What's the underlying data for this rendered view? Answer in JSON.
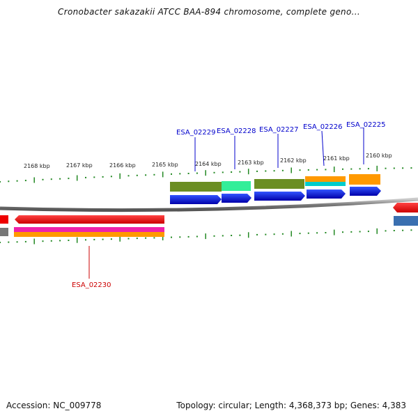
{
  "title": "Cronobacter sakazakii ATCC BAA-894 chromosome, complete geno...",
  "footer": {
    "accession": "Accession: NC_009778",
    "topology": "Topology: circular; Length: 4,368,373 bp; Genes: 4,383"
  },
  "kbp_labels": [
    "2168 kbp",
    "2167 kbp",
    "2166 kbp",
    "2165 kbp",
    "2164 kbp",
    "2163 kbp",
    "2162 kbp",
    "2161 kbp",
    "2160 kbp"
  ],
  "genes": [
    {
      "id": "ESA_02229",
      "color": "#0000cc"
    },
    {
      "id": "ESA_02228",
      "color": "#0000cc"
    },
    {
      "id": "ESA_02227",
      "color": "#0000cc"
    },
    {
      "id": "ESA_02226",
      "color": "#0000cc"
    },
    {
      "id": "ESA_02225",
      "color": "#0000cc"
    },
    {
      "id": "ESA_02230",
      "color": "#cc0000"
    }
  ],
  "colors": {
    "cds_forward": "#0000ee",
    "cds_reverse": "#ee0000",
    "olive": "#6b8e23",
    "aqua": "#33ee99",
    "orange": "#ff9900",
    "cyan": "#00cccc",
    "magenta": "#ee22aa",
    "steel": "#3a6fb0",
    "ticks": "#228822",
    "backbone": "#8a8a8a"
  }
}
